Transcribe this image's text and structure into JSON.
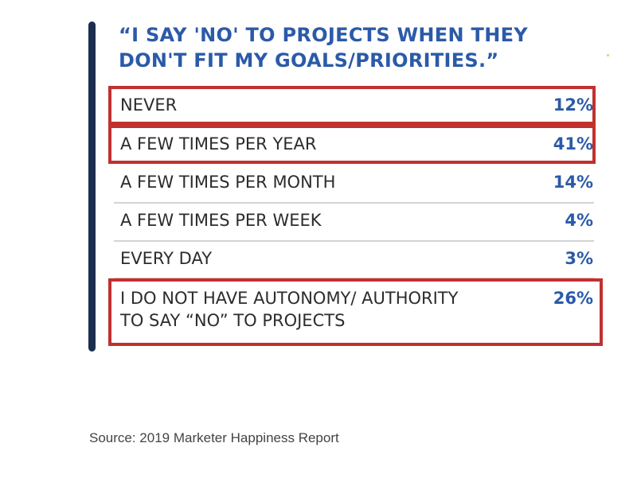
{
  "chart_data": {
    "type": "table",
    "title": "“I SAY 'NO' TO PROJECTS WHEN THEY DON'T FIT MY GOALS/PRIORITIES.”",
    "rows": [
      {
        "label": "NEVER",
        "value": "12%",
        "percent": 12,
        "highlighted": true
      },
      {
        "label": "A FEW TIMES PER YEAR",
        "value": "41%",
        "percent": 41,
        "highlighted": true
      },
      {
        "label": "A FEW TIMES PER MONTH",
        "value": "14%",
        "percent": 14,
        "highlighted": false
      },
      {
        "label": "A FEW TIMES PER WEEK",
        "value": "4%",
        "percent": 4,
        "highlighted": false
      },
      {
        "label": "EVERY DAY",
        "value": "3%",
        "percent": 3,
        "highlighted": false
      },
      {
        "label": "I DO NOT HAVE AUTONOMY/ AUTHORITY\nTO SAY “NO” TO PROJECTS",
        "value": "26%",
        "percent": 26,
        "highlighted": true
      }
    ],
    "highlight_color": "#c0312f",
    "title_color": "#2b5aa8",
    "value_color": "#2b5aa8"
  },
  "source": "Source: 2019 Marketer Happiness Report"
}
